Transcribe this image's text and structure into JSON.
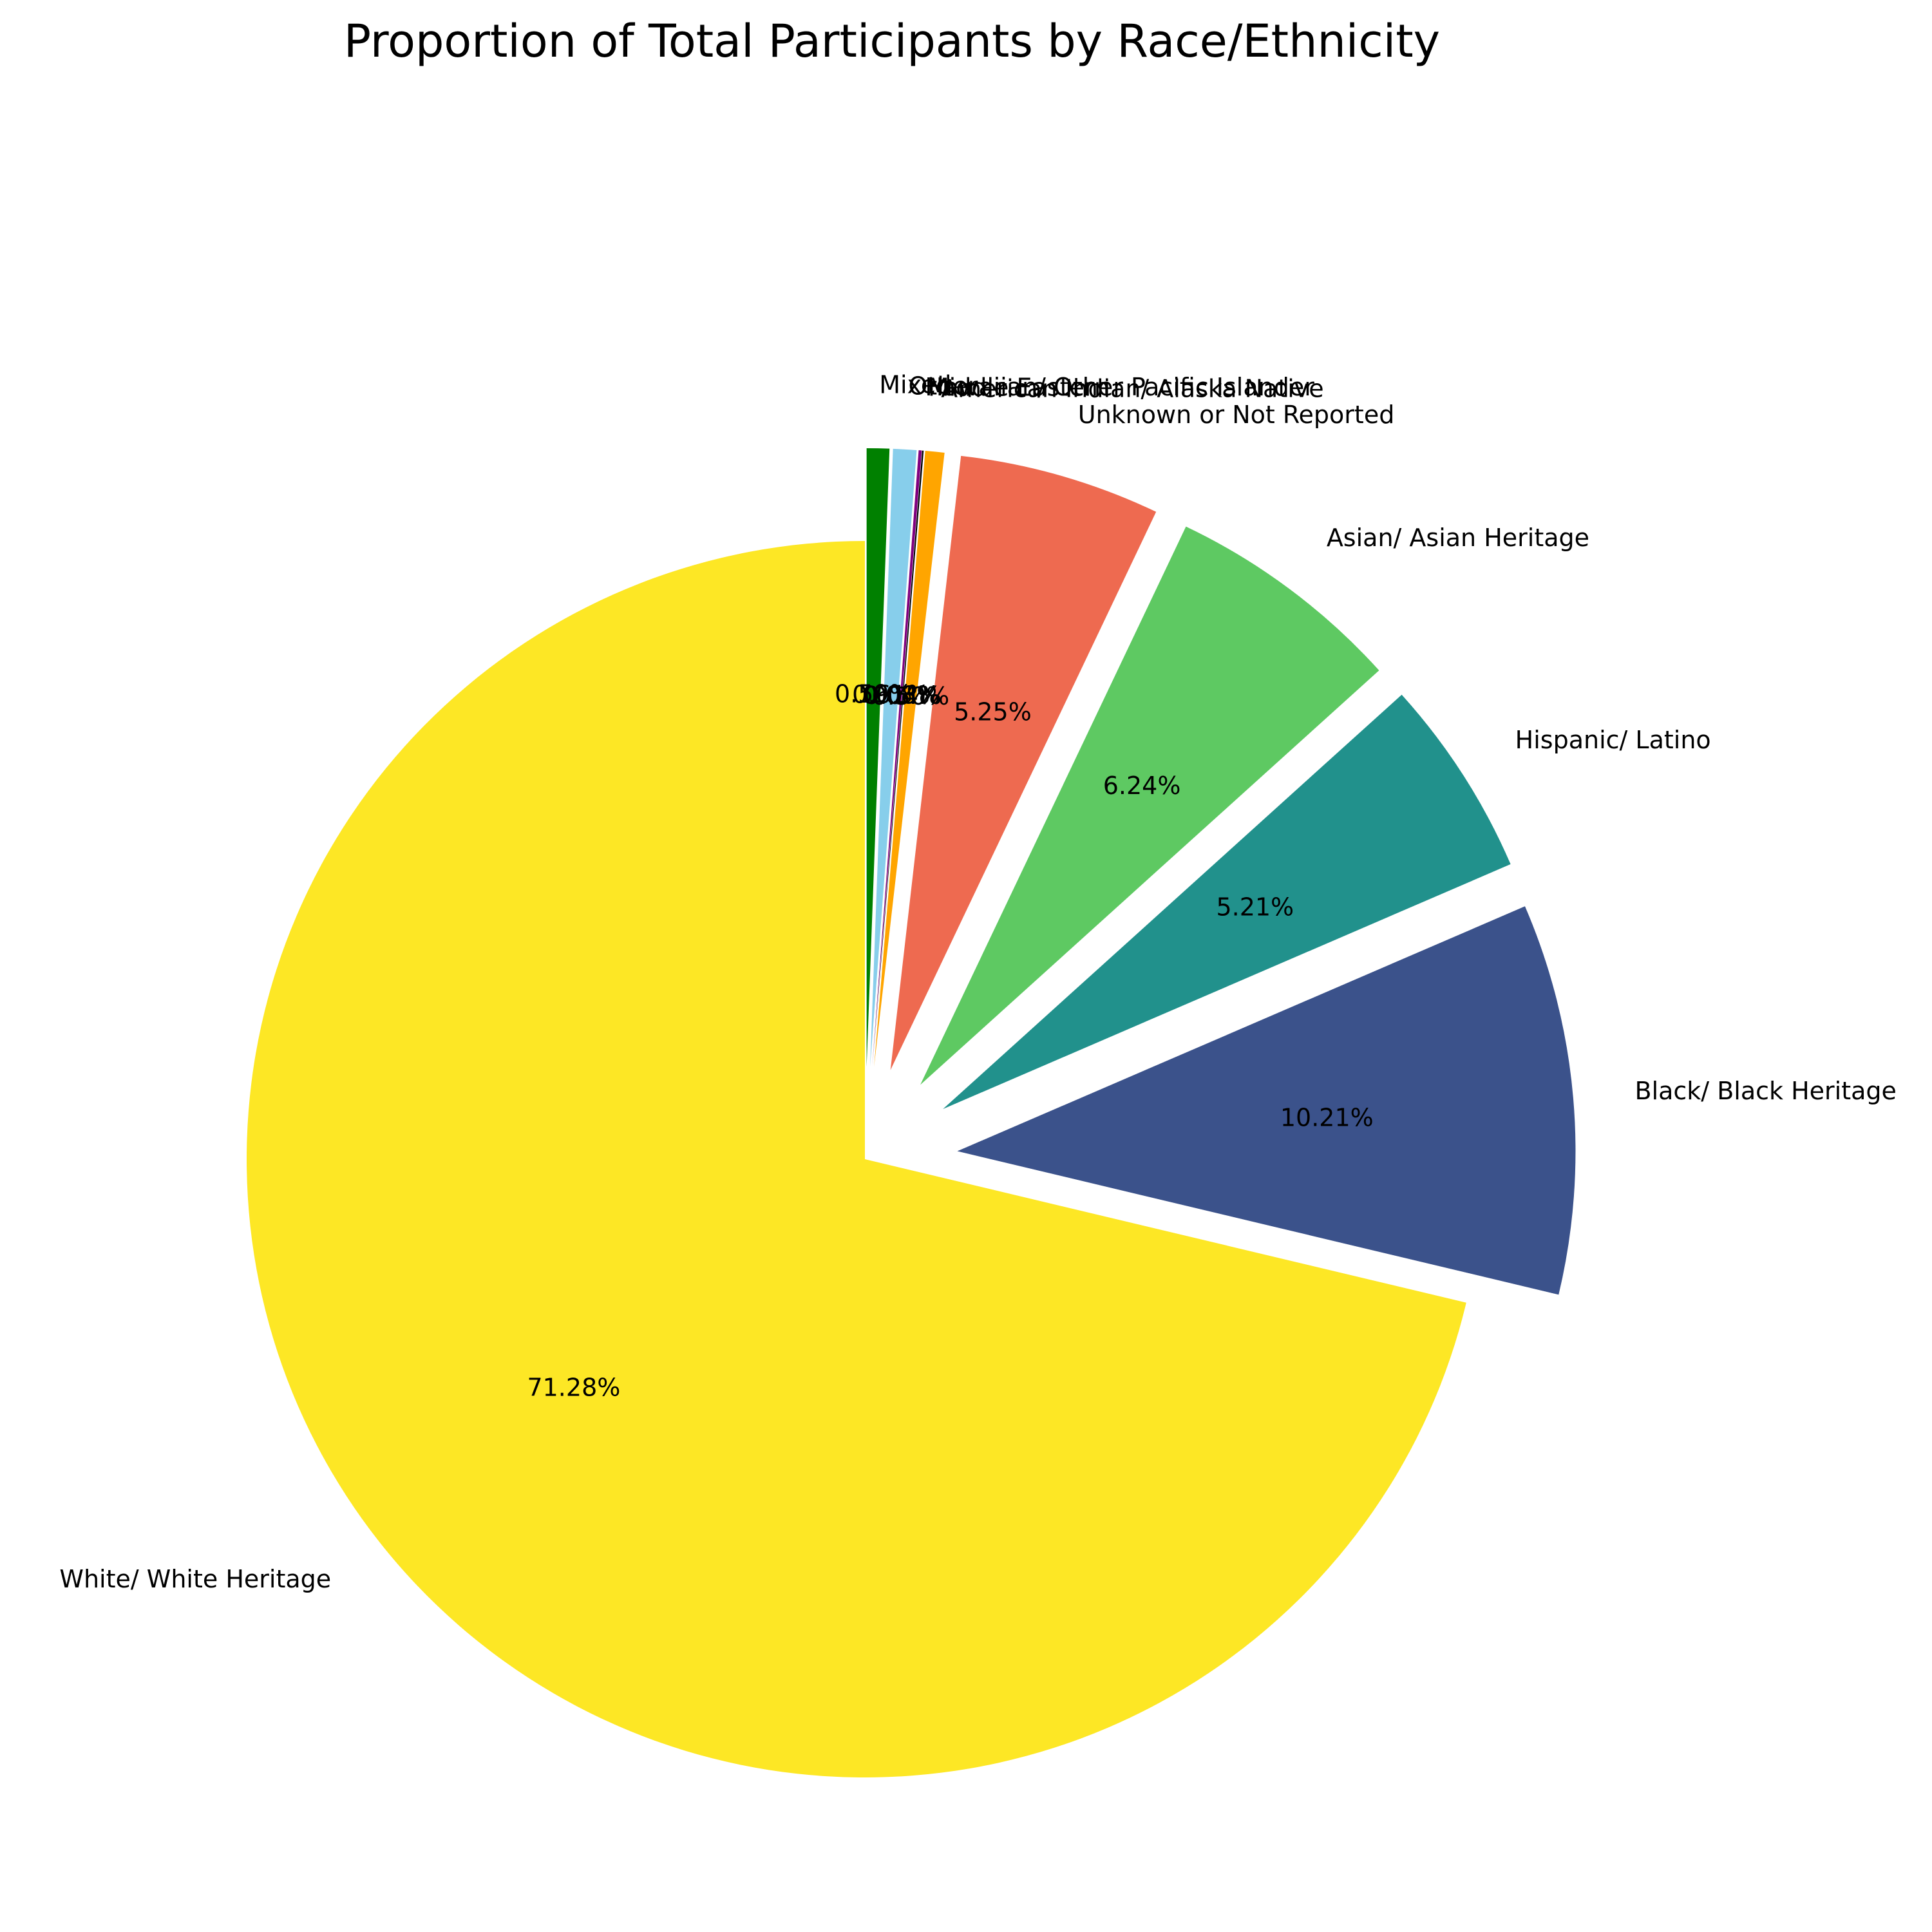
{
  "chart_data": {
    "type": "pie",
    "title": "Proportion of Total Participants by Race/Ethnicity",
    "start_angle_deg": 90,
    "direction": "clockwise",
    "slices": [
      {
        "label": "Mixed",
        "value": 0.59,
        "pct_text": "0.59%",
        "color": "#008000"
      },
      {
        "label": "Other",
        "value": 0.61,
        "pct_text": "0.61%",
        "color": "#87CEEB"
      },
      {
        "label": "Hawaiian/ Other Pacific Islander",
        "value": 0.08,
        "pct_text": "0.08%",
        "color": "#800080"
      },
      {
        "label": "Middle Eastern",
        "value": 0.04,
        "pct_text": "0.04%",
        "color": "#000000"
      },
      {
        "label": "American Indian/ Alaska Native",
        "value": 0.5,
        "pct_text": "0.50%",
        "color": "#FFA500"
      },
      {
        "label": "Unknown or Not Reported",
        "value": 5.25,
        "pct_text": "5.25%",
        "color": "#EE6A50"
      },
      {
        "label": "Asian/ Asian Heritage",
        "value": 6.24,
        "pct_text": "6.24%",
        "color": "#5EC962"
      },
      {
        "label": "Hispanic/ Latino",
        "value": 5.21,
        "pct_text": "5.21%",
        "color": "#21918C"
      },
      {
        "label": "Black/ Black Heritage",
        "value": 10.21,
        "pct_text": "10.21%",
        "color": "#3B528B"
      },
      {
        "label": "White/ White Heritage",
        "value": 71.28,
        "pct_text": "71.28%",
        "color": "#FDE725"
      }
    ]
  }
}
